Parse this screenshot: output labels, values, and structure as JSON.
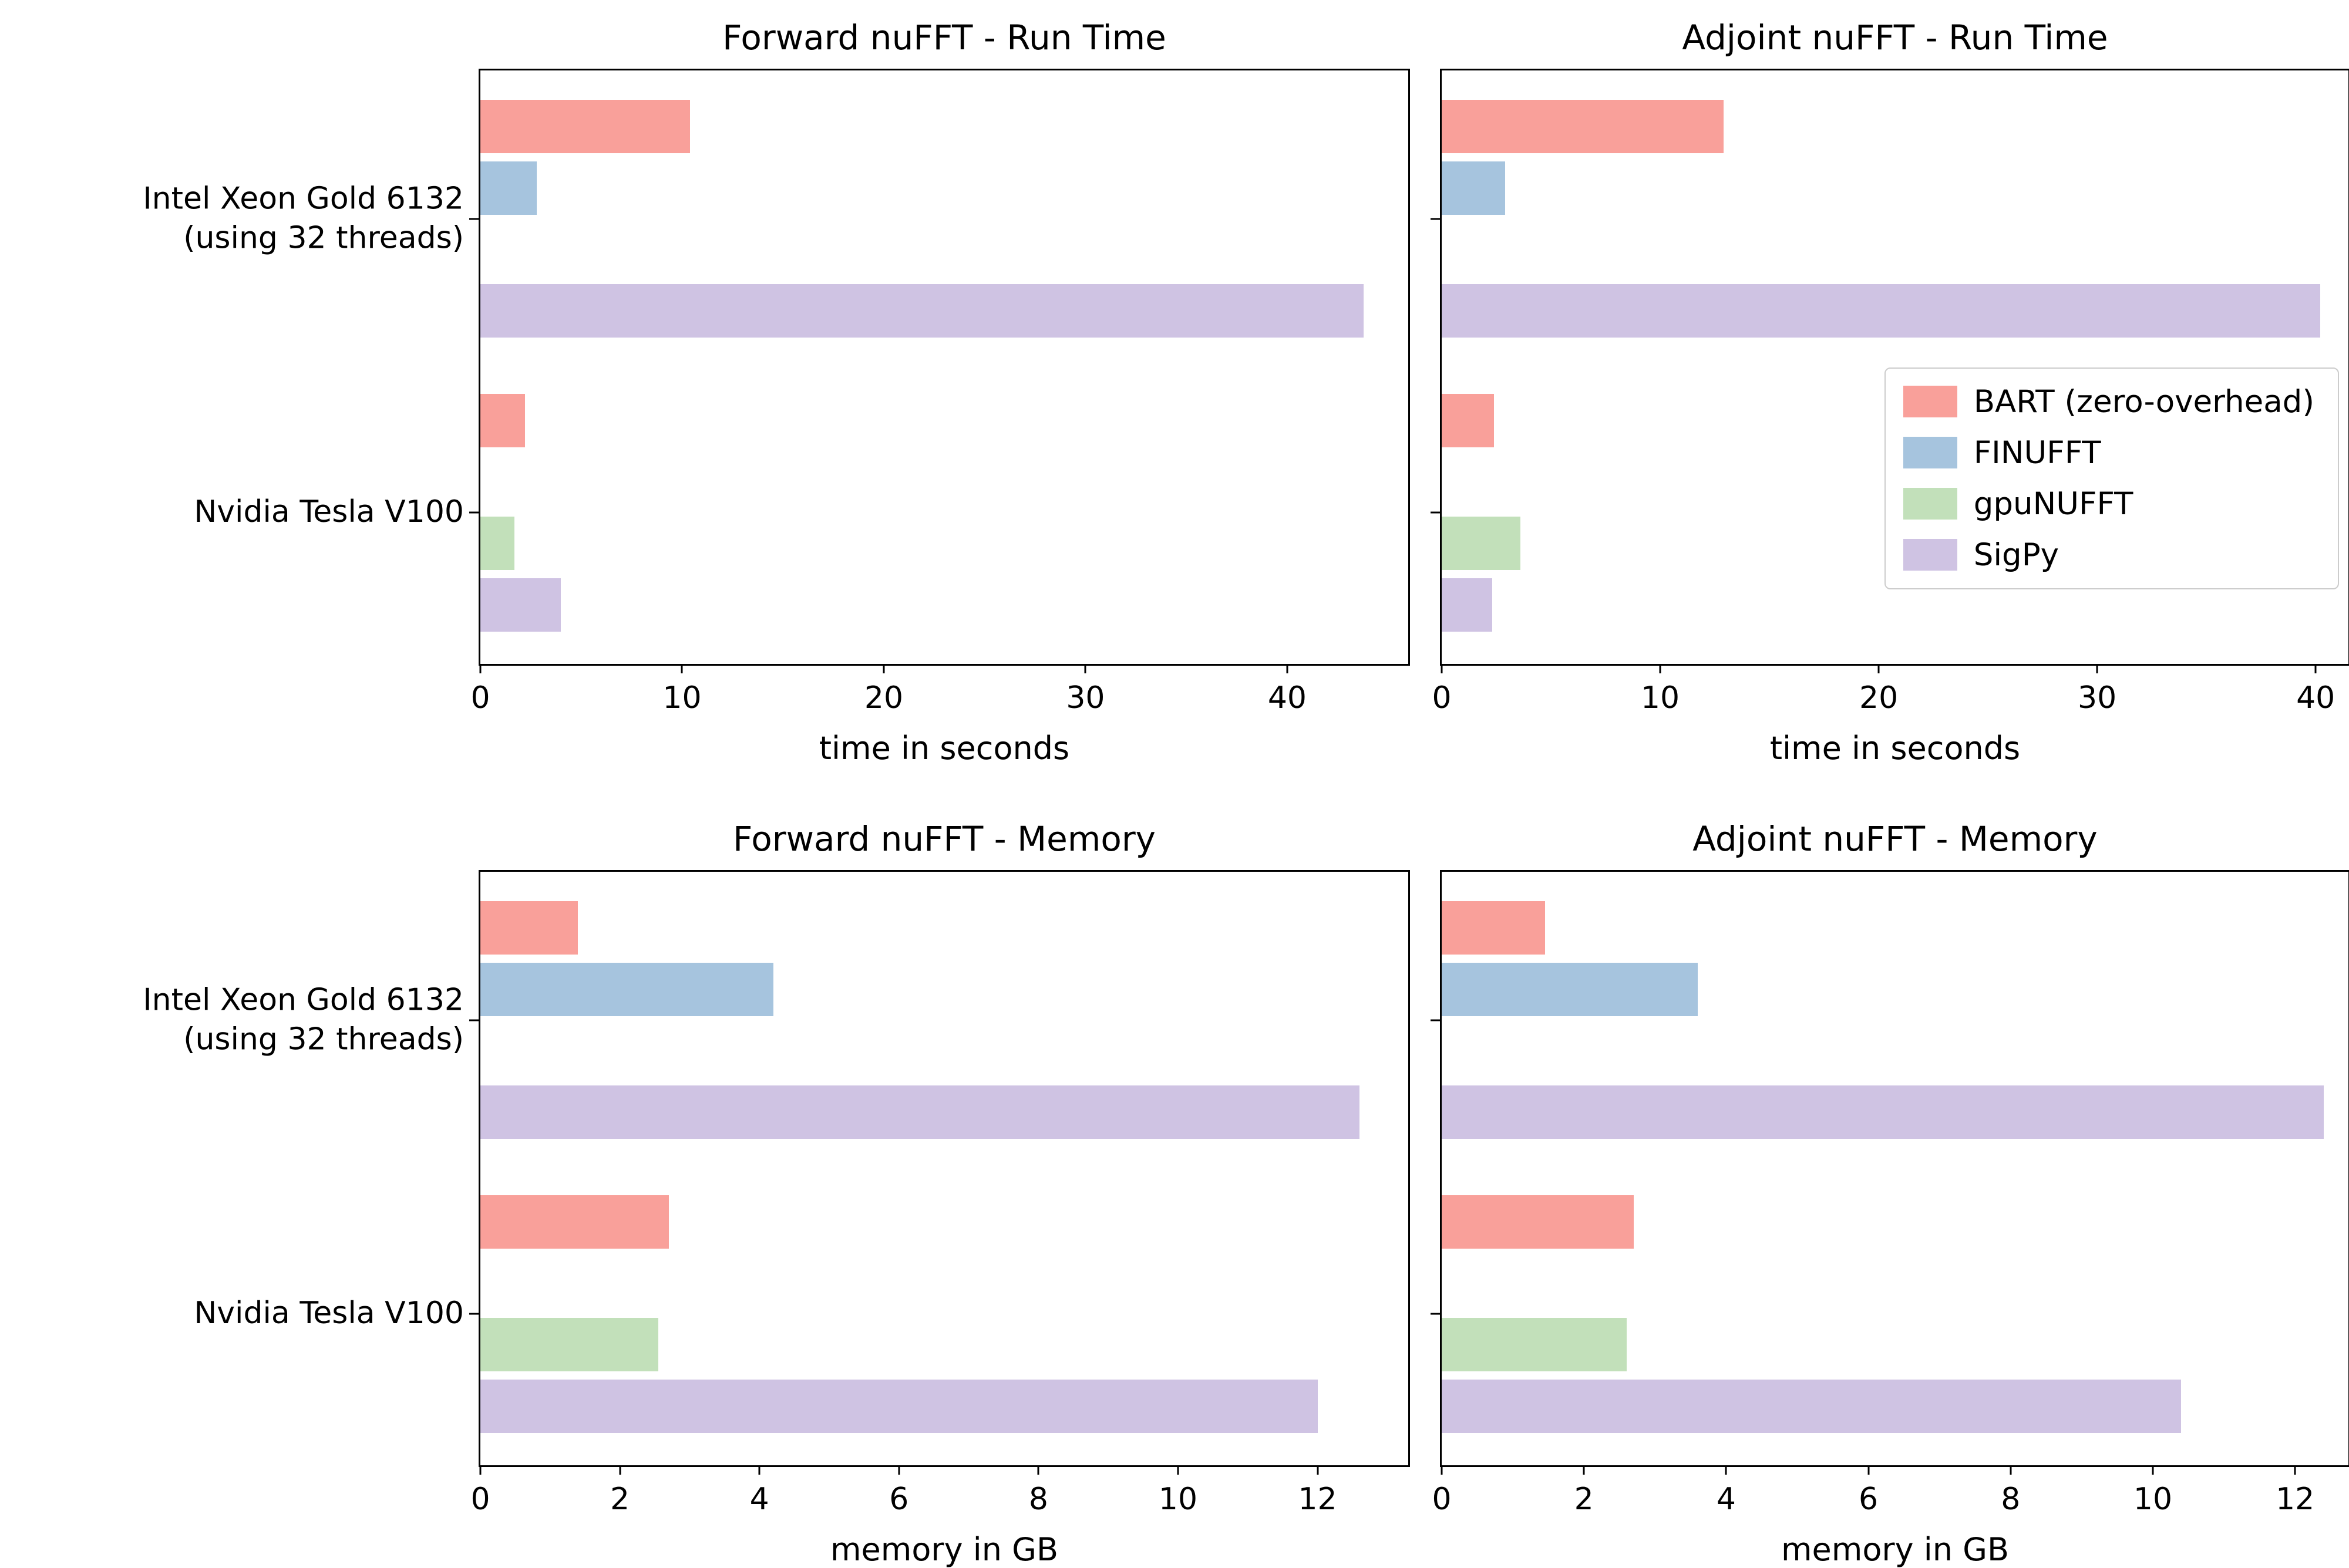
{
  "figure": {
    "background": "#ffffff",
    "text_color": "#000000"
  },
  "legend": {
    "position": "center right",
    "entries": [
      {
        "label": "BART (zero-overhead)",
        "color": "#f9a09a"
      },
      {
        "label": "FINUFFT",
        "color": "#a6c4de"
      },
      {
        "label": "gpuNUFFT",
        "color": "#c2e0ba"
      },
      {
        "label": "SigPy",
        "color": "#cfc3e3"
      }
    ]
  },
  "chart_data": [
    {
      "type": "bar",
      "orientation": "horizontal",
      "title": "Forward nuFFT - Run Time",
      "xlabel": "time in seconds",
      "categories": [
        "Intel Xeon Gold 6132\n(using 32 threads)",
        "Nvidia Tesla V100"
      ],
      "xticks": [
        0,
        10,
        20,
        30,
        40
      ],
      "xlim": [
        0,
        46
      ],
      "grid": false,
      "show_ylabels": true,
      "legend": false,
      "series": [
        {
          "name": "BART (zero-overhead)",
          "color": "#f9a09a",
          "values": [
            10.4,
            2.2
          ]
        },
        {
          "name": "FINUFFT",
          "color": "#a6c4de",
          "values": [
            2.8,
            null
          ]
        },
        {
          "name": "gpuNUFFT",
          "color": "#c2e0ba",
          "values": [
            null,
            1.7
          ]
        },
        {
          "name": "SigPy",
          "color": "#cfc3e3",
          "values": [
            43.8,
            4.0
          ]
        }
      ]
    },
    {
      "type": "bar",
      "orientation": "horizontal",
      "title": "Adjoint nuFFT - Run Time",
      "xlabel": "time in seconds",
      "categories": [
        "Intel Xeon Gold 6132\n(using 32 threads)",
        "Nvidia Tesla V100"
      ],
      "xticks": [
        0,
        10,
        20,
        30,
        40
      ],
      "xlim": [
        0,
        41.5
      ],
      "grid": false,
      "show_ylabels": false,
      "legend": true,
      "series": [
        {
          "name": "BART (zero-overhead)",
          "color": "#f9a09a",
          "values": [
            12.9,
            2.4
          ]
        },
        {
          "name": "FINUFFT",
          "color": "#a6c4de",
          "values": [
            2.9,
            null
          ]
        },
        {
          "name": "gpuNUFFT",
          "color": "#c2e0ba",
          "values": [
            null,
            3.6
          ]
        },
        {
          "name": "SigPy",
          "color": "#cfc3e3",
          "values": [
            40.2,
            2.3
          ]
        }
      ]
    },
    {
      "type": "bar",
      "orientation": "horizontal",
      "title": "Forward nuFFT - Memory",
      "xlabel": "memory in GB",
      "categories": [
        "Intel Xeon Gold 6132\n(using 32 threads)",
        "Nvidia Tesla V100"
      ],
      "xticks": [
        0,
        2,
        4,
        6,
        8,
        10,
        12
      ],
      "xlim": [
        0,
        13.3
      ],
      "grid": false,
      "show_ylabels": true,
      "legend": false,
      "series": [
        {
          "name": "BART (zero-overhead)",
          "color": "#f9a09a",
          "values": [
            1.4,
            2.7
          ]
        },
        {
          "name": "FINUFFT",
          "color": "#a6c4de",
          "values": [
            4.2,
            null
          ]
        },
        {
          "name": "gpuNUFFT",
          "color": "#c2e0ba",
          "values": [
            null,
            2.55
          ]
        },
        {
          "name": "SigPy",
          "color": "#cfc3e3",
          "values": [
            12.6,
            12.0
          ]
        }
      ]
    },
    {
      "type": "bar",
      "orientation": "horizontal",
      "title": "Adjoint nuFFT - Memory",
      "xlabel": "memory in GB",
      "categories": [
        "Intel Xeon Gold 6132\n(using 32 threads)",
        "Nvidia Tesla V100"
      ],
      "xticks": [
        0,
        2,
        4,
        6,
        8,
        10,
        12
      ],
      "xlim": [
        0,
        12.75
      ],
      "grid": false,
      "show_ylabels": false,
      "legend": false,
      "series": [
        {
          "name": "BART (zero-overhead)",
          "color": "#f9a09a",
          "values": [
            1.45,
            2.7
          ]
        },
        {
          "name": "FINUFFT",
          "color": "#a6c4de",
          "values": [
            3.6,
            null
          ]
        },
        {
          "name": "gpuNUFFT",
          "color": "#c2e0ba",
          "values": [
            null,
            2.6
          ]
        },
        {
          "name": "SigPy",
          "color": "#cfc3e3",
          "values": [
            12.4,
            10.4
          ]
        }
      ]
    }
  ]
}
